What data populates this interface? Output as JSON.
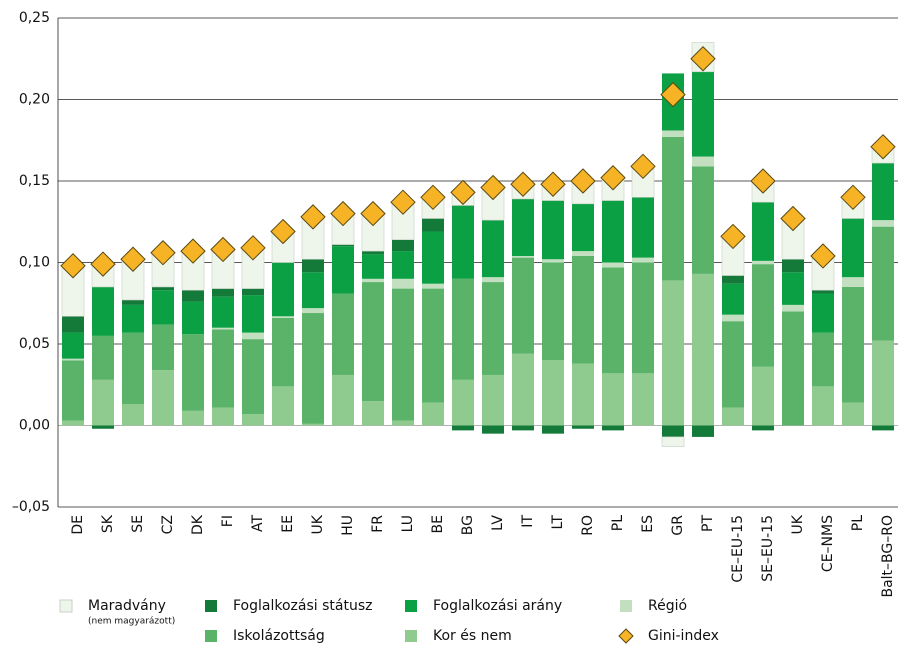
{
  "chart_data": {
    "type": "bar",
    "stacked": true,
    "categories": [
      "DE",
      "SK",
      "SE",
      "CZ",
      "DK",
      "FI",
      "AT",
      "EE",
      "UK",
      "HU",
      "FR",
      "LU",
      "BE",
      "BG",
      "LV",
      "IT",
      "LT",
      "RO",
      "PL",
      "ES",
      "GR",
      "PT",
      "CE–EU-15",
      "SE–EU-15",
      "UK",
      "CE–NMS",
      "PL",
      "Balt–BG–RO"
    ],
    "series": [
      {
        "name": "Kor és nem",
        "color": "#8fca8f",
        "values": [
          0.003,
          0.028,
          0.013,
          0.034,
          0.009,
          0.011,
          0.007,
          0.024,
          0.001,
          0.031,
          0.015,
          0.003,
          0.014,
          0.028,
          0.031,
          0.044,
          0.04,
          0.038,
          0.032,
          0.032,
          0.089,
          0.093,
          0.011,
          0.036,
          0.0,
          0.024,
          0.014,
          0.052
        ]
      },
      {
        "name": "Iskolázottság",
        "color": "#5bb36a",
        "values": [
          0.037,
          0.027,
          0.044,
          0.028,
          0.047,
          0.048,
          0.046,
          0.042,
          0.068,
          0.05,
          0.073,
          0.081,
          0.07,
          0.062,
          0.057,
          0.059,
          0.06,
          0.066,
          0.065,
          0.068,
          0.088,
          0.066,
          0.053,
          0.063,
          0.07,
          0.033,
          0.071,
          0.07
        ]
      },
      {
        "name": "Régió",
        "color": "#c2e0c0",
        "values": [
          0.001,
          0.0,
          0.0,
          0.0,
          0.0,
          0.001,
          0.004,
          0.001,
          0.003,
          0.0,
          0.002,
          0.006,
          0.003,
          0.0,
          0.003,
          0.001,
          0.002,
          0.003,
          0.003,
          0.003,
          0.004,
          0.006,
          0.004,
          0.002,
          0.004,
          0.0,
          0.006,
          0.004
        ]
      },
      {
        "name": "Foglalkozási arány",
        "color": "#0aa043",
        "values": [
          0.016,
          0.03,
          0.017,
          0.021,
          0.02,
          0.019,
          0.023,
          0.033,
          0.022,
          0.029,
          0.015,
          0.017,
          0.032,
          0.045,
          0.035,
          0.035,
          0.036,
          0.029,
          0.038,
          0.037,
          0.035,
          0.052,
          0.019,
          0.036,
          0.02,
          0.024,
          0.036,
          0.035
        ]
      },
      {
        "name": "Foglalkozási státusz",
        "color": "#137a3a",
        "values": [
          0.01,
          -0.002,
          0.003,
          0.002,
          0.007,
          0.005,
          0.004,
          0.0,
          0.008,
          0.001,
          0.002,
          0.007,
          0.008,
          -0.003,
          -0.005,
          -0.003,
          -0.005,
          -0.002,
          -0.003,
          0.0,
          -0.007,
          -0.007,
          0.005,
          -0.003,
          0.008,
          0.002,
          0.0,
          -0.003
        ]
      },
      {
        "name": "Maradvány",
        "note": "(nem magyarázott)",
        "color": "#eef6ec",
        "values": [
          0.031,
          0.014,
          0.025,
          0.02,
          0.024,
          0.024,
          0.025,
          0.019,
          0.026,
          0.019,
          0.023,
          0.023,
          0.013,
          0.009,
          0.02,
          0.009,
          0.01,
          0.014,
          0.014,
          0.019,
          -0.006,
          0.018,
          0.023,
          0.013,
          0.025,
          0.021,
          0.013,
          0.01
        ]
      }
    ],
    "gini": {
      "name": "Gini-index",
      "color": "#f5b325",
      "values": [
        0.098,
        0.099,
        0.102,
        0.106,
        0.107,
        0.108,
        0.109,
        0.119,
        0.128,
        0.13,
        0.13,
        0.137,
        0.14,
        0.143,
        0.146,
        0.148,
        0.148,
        0.15,
        0.152,
        0.159,
        0.203,
        0.225,
        0.116,
        0.15,
        0.127,
        0.104,
        0.14,
        0.171
      ]
    },
    "ylim": [
      -0.05,
      0.25
    ],
    "yticks": [
      {
        "value": -0.05,
        "label": "–0,05"
      },
      {
        "value": 0,
        "label": "0,00"
      },
      {
        "value": 0.05,
        "label": "0,05"
      },
      {
        "value": 0.1,
        "label": "0,10"
      },
      {
        "value": 0.15,
        "label": "0,15"
      },
      {
        "value": 0.2,
        "label": "0,20"
      },
      {
        "value": 0.25,
        "label": "0,25"
      }
    ],
    "grid": true
  }
}
